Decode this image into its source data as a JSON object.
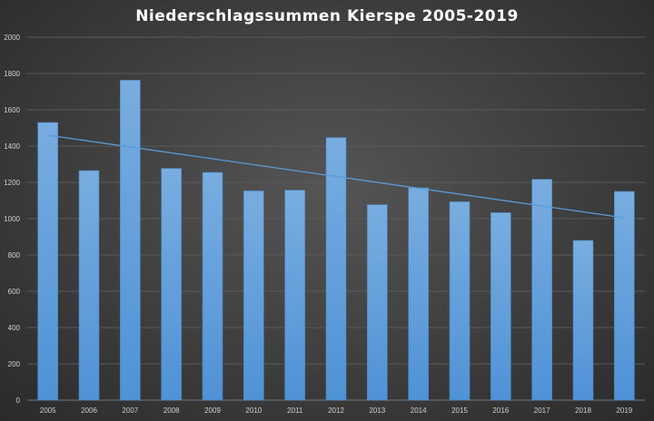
{
  "chart_data": {
    "type": "bar",
    "title": "Niederschlagssummen Kierspe 2005-2019",
    "categories": [
      "2005",
      "2006",
      "2007",
      "2008",
      "2009",
      "2010",
      "2011",
      "2012",
      "2013",
      "2014",
      "2015",
      "2016",
      "2017",
      "2018",
      "2019"
    ],
    "values": [
      1530,
      1265,
      1763,
      1277,
      1255,
      1153,
      1157,
      1447,
      1077,
      1170,
      1093,
      1033,
      1217,
      880,
      1150
    ],
    "trendline": {
      "type": "linear",
      "start": 1460,
      "end": 1005
    },
    "ylim": [
      0,
      2000
    ],
    "yticks": [
      0,
      200,
      400,
      600,
      800,
      1000,
      1200,
      1400,
      1600,
      1800,
      2000
    ],
    "grid": true,
    "legend": "none",
    "colors": {
      "bar": "#5b9bd5",
      "trendline": "#5b9bd5",
      "background": "#404040",
      "title": "#ffffff"
    }
  }
}
